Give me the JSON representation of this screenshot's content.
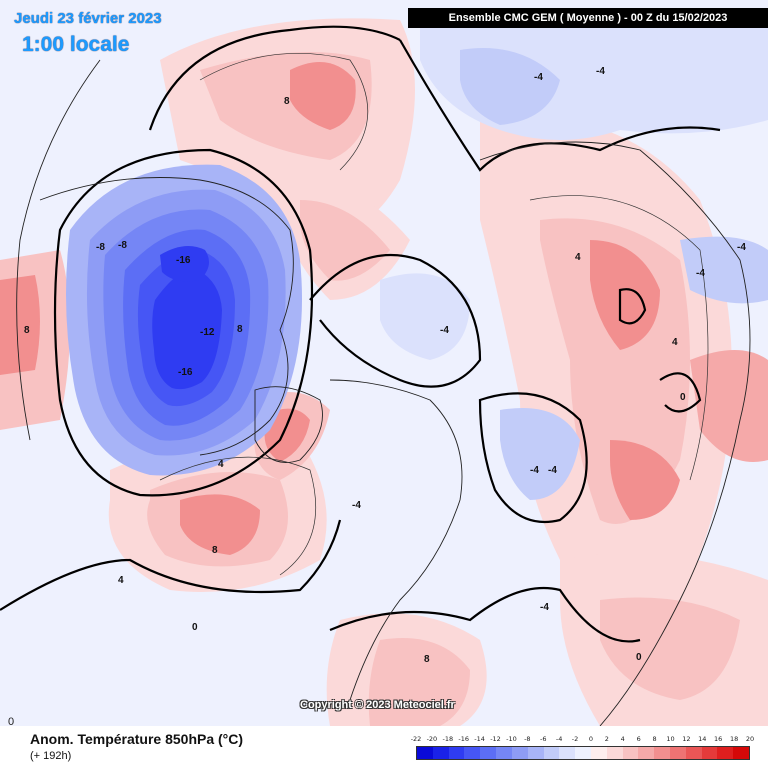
{
  "header": {
    "date": "Jeudi 23 février 2023",
    "local_time": "1:00 locale",
    "model_run": "Ensemble CMC GEM  ( Moyenne )  -  00 Z du 15/02/2023"
  },
  "footer": {
    "parameter": "Anom. Température 850hPa (°C)",
    "lead_time": "(+ 192h)",
    "copyright": "Copyright © 2023 Meteociel.fr",
    "corner_value": "0"
  },
  "legend": {
    "labels": [
      "-22",
      "-20",
      "-18",
      "-16",
      "-14",
      "-12",
      "-10",
      "-8",
      "-6",
      "-4",
      "-2",
      "0",
      "2",
      "4",
      "6",
      "8",
      "10",
      "12",
      "14",
      "16",
      "18",
      "20"
    ],
    "colors": [
      "#0a0ad8",
      "#1a22e8",
      "#2f3cf2",
      "#4656f5",
      "#5c6ef5",
      "#7586f5",
      "#8e9cf5",
      "#a8b4f7",
      "#c2ccf9",
      "#dbe1fc",
      "#eef1fe",
      "#fdeeee",
      "#fbd9d9",
      "#f8c2c2",
      "#f5a9a9",
      "#f28f8f",
      "#ee7373",
      "#ea5656",
      "#e53a3a",
      "#df1f1f",
      "#d60808"
    ]
  },
  "map_labels": [
    {
      "text": "-16",
      "name": "label-minus16-north"
    },
    {
      "text": "-16",
      "name": "label-minus16-south"
    },
    {
      "text": "-12",
      "name": "label-minus12"
    },
    {
      "text": "-8",
      "name": "label-minus8-a"
    },
    {
      "text": "-8",
      "name": "label-minus8-b"
    },
    {
      "text": "8",
      "name": "label-8-canada"
    },
    {
      "text": "8",
      "name": "label-8-alaska"
    },
    {
      "text": "8",
      "name": "label-8-atlantic"
    },
    {
      "text": "8",
      "name": "label-8-west"
    },
    {
      "text": "8",
      "name": "label-8-europe"
    },
    {
      "text": "4",
      "name": "label-4-atlantic"
    },
    {
      "text": "4",
      "name": "label-4-greenland"
    },
    {
      "text": "4",
      "name": "label-4-asia"
    },
    {
      "text": "-4",
      "name": "label-minus4-arctic"
    },
    {
      "text": "-4",
      "name": "label-minus4-siberia"
    },
    {
      "text": "-4",
      "name": "label-minus4-russia"
    },
    {
      "text": "-4",
      "name": "label-minus4-europe"
    },
    {
      "text": "-4",
      "name": "label-minus4-russia-b"
    },
    {
      "text": "-4",
      "name": "label-minus4-scandinavia"
    },
    {
      "text": "-4",
      "name": "label-minus4-iceland"
    },
    {
      "text": "0",
      "name": "label-0-pacific"
    },
    {
      "text": "0",
      "name": "label-0-south"
    },
    {
      "text": "4",
      "name": "label-4-china"
    },
    {
      "text": "-4",
      "name": "label-minus4-east"
    },
    {
      "text": "-4",
      "name": "label-minus4-hudson"
    },
    {
      "text": "0",
      "name": "label-0-asia"
    }
  ]
}
